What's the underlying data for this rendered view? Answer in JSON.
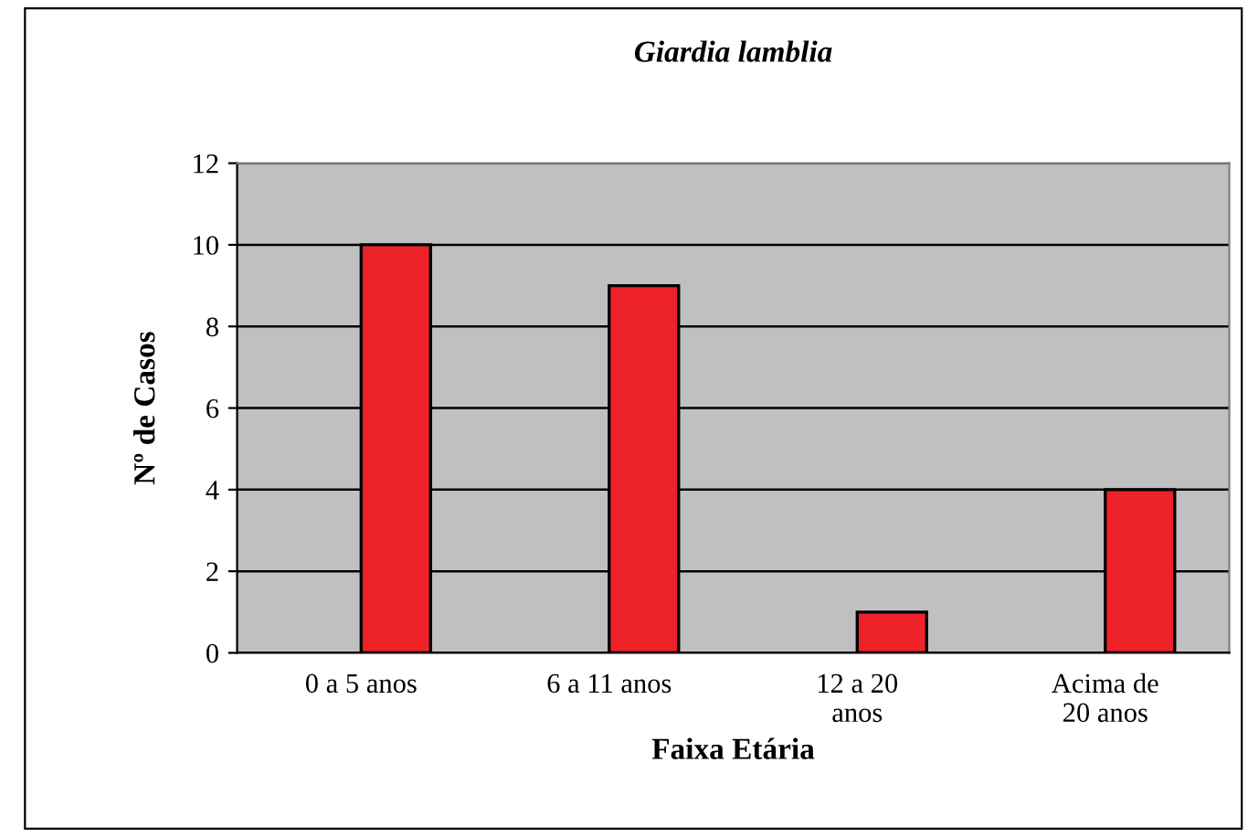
{
  "chart_data": {
    "type": "bar",
    "title": "Giardia lamblia",
    "xlabel": "Faixa Etária",
    "ylabel": "Nº de Casos",
    "categories": [
      "0 a 5 anos",
      "6 a 11 anos",
      "12 a 20\nanos",
      "Acima de\n20 anos"
    ],
    "values": [
      10,
      9,
      1,
      4
    ],
    "color": "#ee2229",
    "ylim": [
      0,
      12
    ],
    "yticks": [
      0,
      2,
      4,
      6,
      8,
      10,
      12
    ],
    "grid": "y"
  }
}
